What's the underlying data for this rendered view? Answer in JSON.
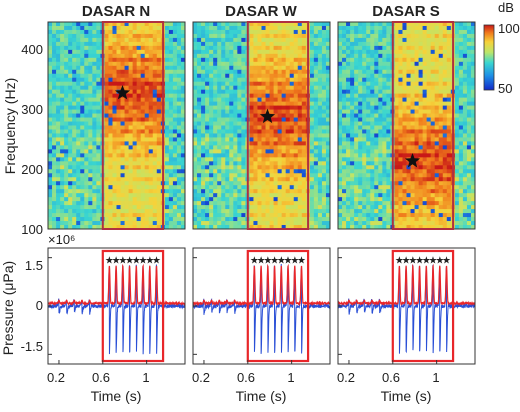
{
  "figure": {
    "panel_titles": [
      "DASAR N",
      "DASAR W",
      "DASAR S"
    ],
    "colorbar": {
      "unit_label": "dB",
      "max_label": "100",
      "min_label": "50"
    },
    "spectrogram": {
      "ylabel": "Frequency (Hz)",
      "yticks": [
        "400",
        "300",
        "200",
        "100"
      ]
    },
    "waveform": {
      "ylabel": "Pressure (μPa)",
      "xlabel": "Time (s)",
      "yticks": [
        "1.5",
        "0",
        "-1.5"
      ],
      "xticks": [
        "0.2",
        "0.6",
        "1"
      ],
      "exponent": "×10⁶"
    }
  },
  "chart_data": [
    {
      "type": "heatmap",
      "panels": [
        {
          "title": "DASAR N",
          "highlight_box_hz": [
            100,
            450
          ],
          "star_hz": 330
        },
        {
          "title": "DASAR W",
          "highlight_box_hz": [
            100,
            450
          ],
          "star_hz": 290
        },
        {
          "title": "DASAR S",
          "highlight_box_hz": [
            100,
            450
          ],
          "star_hz": 215
        }
      ],
      "ylabel": "Frequency (Hz)",
      "ylim": [
        100,
        450
      ],
      "colorbar": {
        "label": "dB",
        "range": [
          50,
          100
        ]
      }
    },
    {
      "type": "line",
      "panels": [
        {
          "title": "DASAR N",
          "box_time_s": [
            0.6,
            1.15
          ],
          "peak_count": 8
        },
        {
          "title": "DASAR W",
          "box_time_s": [
            0.6,
            1.15
          ],
          "peak_count": 8
        },
        {
          "title": "DASAR S",
          "box_time_s": [
            0.6,
            1.15
          ],
          "peak_count": 8
        }
      ],
      "xlabel": "Time (s)",
      "ylabel": "Pressure (μPa)",
      "xlim": [
        0.1,
        1.35
      ],
      "ylim": [
        -1.8,
        1.8
      ],
      "xticks": [
        0.2,
        0.6,
        1
      ],
      "yticks": [
        1.5,
        0,
        -1.5
      ],
      "y_scale_exponent": 6,
      "colors": {
        "signal": "#2a4fd6",
        "envelope": "#e8262a",
        "box": "#e8262a",
        "peak_marker": "#111111"
      }
    }
  ]
}
